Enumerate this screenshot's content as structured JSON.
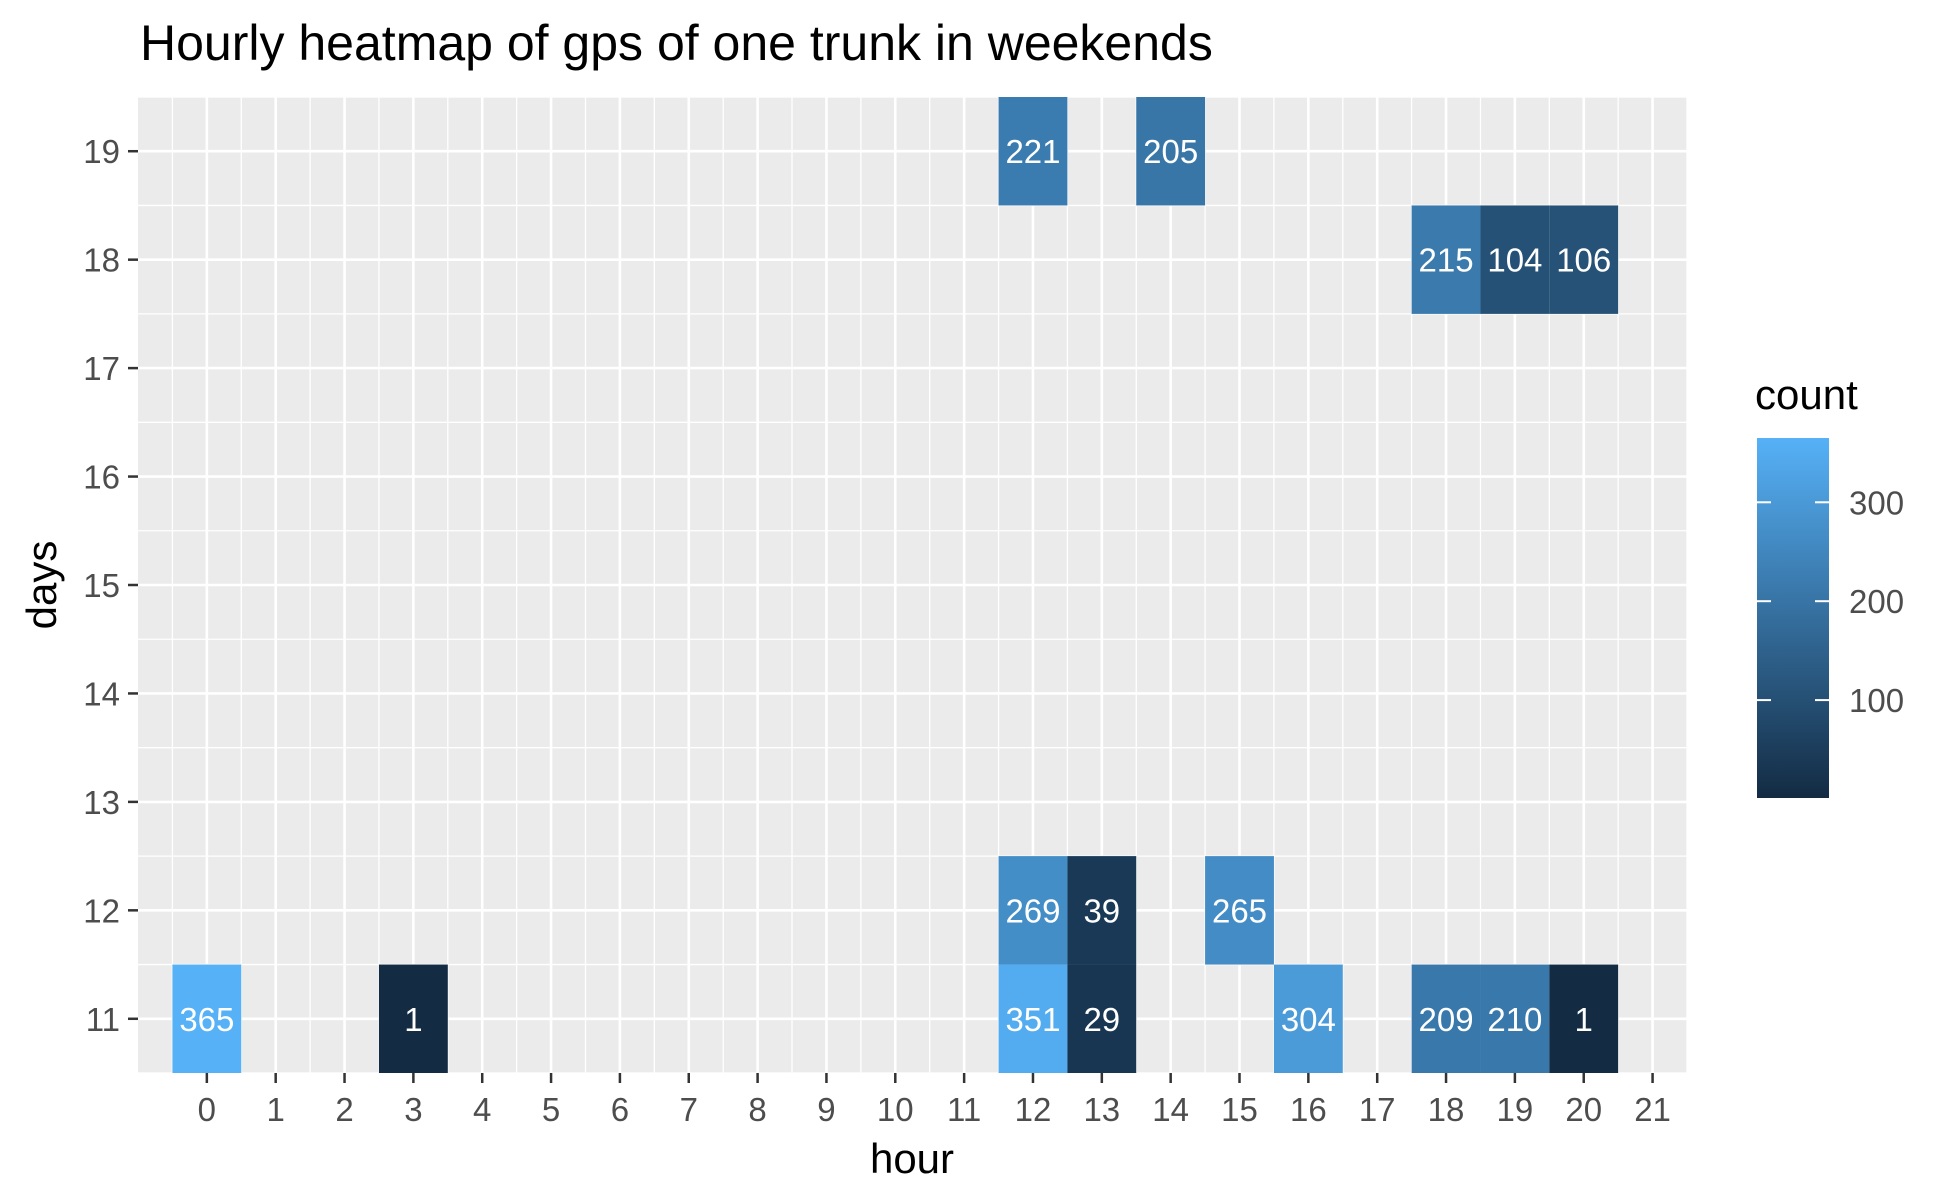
{
  "chart_data": {
    "type": "heatmap",
    "title": "Hourly heatmap of gps of one trunk in weekends",
    "xlabel": "hour",
    "ylabel": "days",
    "x_ticks": [
      0,
      1,
      2,
      3,
      4,
      5,
      6,
      7,
      8,
      9,
      10,
      11,
      12,
      13,
      14,
      15,
      16,
      17,
      18,
      19,
      20,
      21
    ],
    "y_ticks": [
      11,
      12,
      13,
      14,
      15,
      16,
      17,
      18,
      19
    ],
    "xlim": [
      -1,
      21.5
    ],
    "ylim": [
      10.5,
      19.5
    ],
    "grid": true,
    "legend": {
      "title": "count",
      "placement": "right",
      "ticks": [
        100,
        200,
        300
      ],
      "range": [
        1,
        365
      ],
      "color_low": "#132B43",
      "color_high": "#56B1F7"
    },
    "cells": [
      {
        "hour": 12,
        "day": 19,
        "count": 221
      },
      {
        "hour": 14,
        "day": 19,
        "count": 205
      },
      {
        "hour": 18,
        "day": 18,
        "count": 215
      },
      {
        "hour": 19,
        "day": 18,
        "count": 104
      },
      {
        "hour": 20,
        "day": 18,
        "count": 106
      },
      {
        "hour": 12,
        "day": 12,
        "count": 269
      },
      {
        "hour": 13,
        "day": 12,
        "count": 39
      },
      {
        "hour": 15,
        "day": 12,
        "count": 265
      },
      {
        "hour": 0,
        "day": 11,
        "count": 365
      },
      {
        "hour": 3,
        "day": 11,
        "count": 1
      },
      {
        "hour": 12,
        "day": 11,
        "count": 351
      },
      {
        "hour": 13,
        "day": 11,
        "count": 29
      },
      {
        "hour": 16,
        "day": 11,
        "count": 304
      },
      {
        "hour": 18,
        "day": 11,
        "count": 209
      },
      {
        "hour": 19,
        "day": 11,
        "count": 210
      },
      {
        "hour": 20,
        "day": 11,
        "count": 1
      }
    ]
  }
}
